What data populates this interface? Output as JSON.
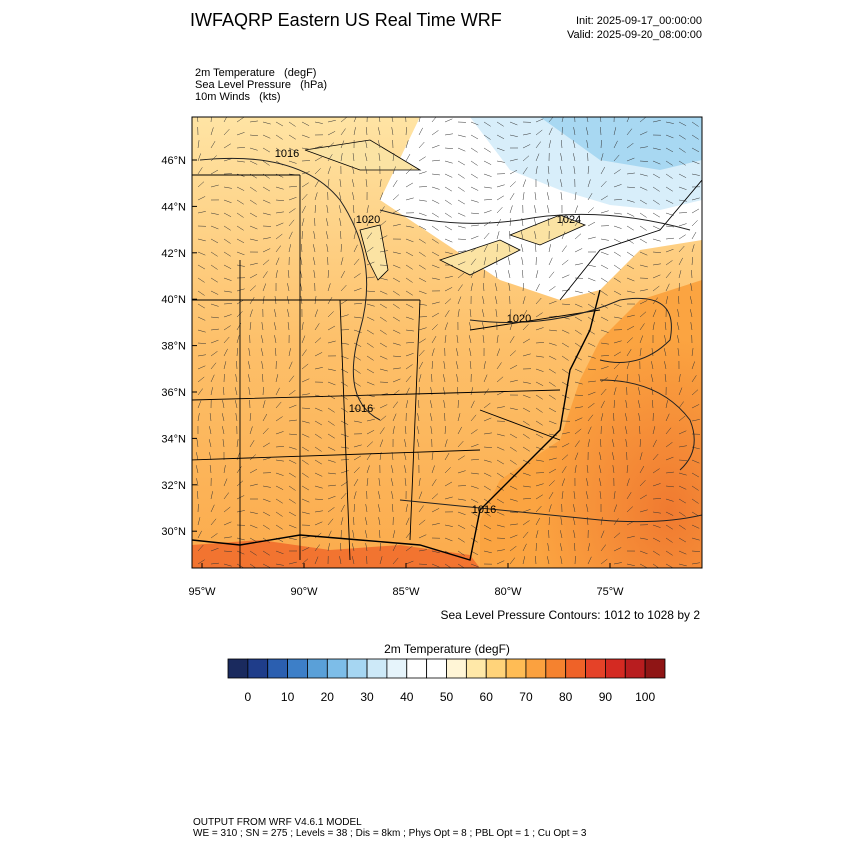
{
  "header": {
    "title": "IWFAQRP Eastern US Real Time WRF",
    "init": "Init: 2025-09-17_00:00:00",
    "valid": "Valid: 2025-09-20_08:00:00"
  },
  "fields": [
    "2m Temperature   (degF)",
    "Sea Level Pressure   (hPa)",
    "10m Winds   (kts)"
  ],
  "map": {
    "lat_labels": [
      "46°N",
      "44°N",
      "42°N",
      "40°N",
      "38°N",
      "36°N",
      "34°N",
      "32°N",
      "30°N"
    ],
    "lon_labels": [
      "95°W",
      "90°W",
      "85°W",
      "80°W",
      "75°W"
    ],
    "contour_labels": [
      "1016",
      "1020",
      "1024",
      "1020",
      "1016",
      "1016"
    ],
    "contour_note": "Sea Level Pressure Contours: 1012 to 1028 by 2"
  },
  "colorbar": {
    "title": "2m Temperature  (degF)",
    "colors": [
      "#1a2a5e",
      "#1f3d8a",
      "#2b5fb0",
      "#3d7fc8",
      "#5aa0d8",
      "#7dbde8",
      "#a6d6f2",
      "#cde9f8",
      "#e6f4fb",
      "#ffffff",
      "#ffffff",
      "#fff5d6",
      "#ffe8a8",
      "#ffd37a",
      "#ffbc55",
      "#fba13f",
      "#f5822f",
      "#ef6228",
      "#e54228",
      "#d42a22",
      "#b81d1f",
      "#8f1515"
    ],
    "labels": [
      0,
      10,
      20,
      30,
      40,
      50,
      60,
      70,
      80,
      90,
      100
    ]
  },
  "footer": [
    "OUTPUT FROM WRF V4.6.1 MODEL",
    "WE = 310 ; SN = 275 ; Levels = 38 ; Dis = 8km ; Phys Opt = 8 ; PBL Opt = 1 ; Cu Opt = 3"
  ]
}
